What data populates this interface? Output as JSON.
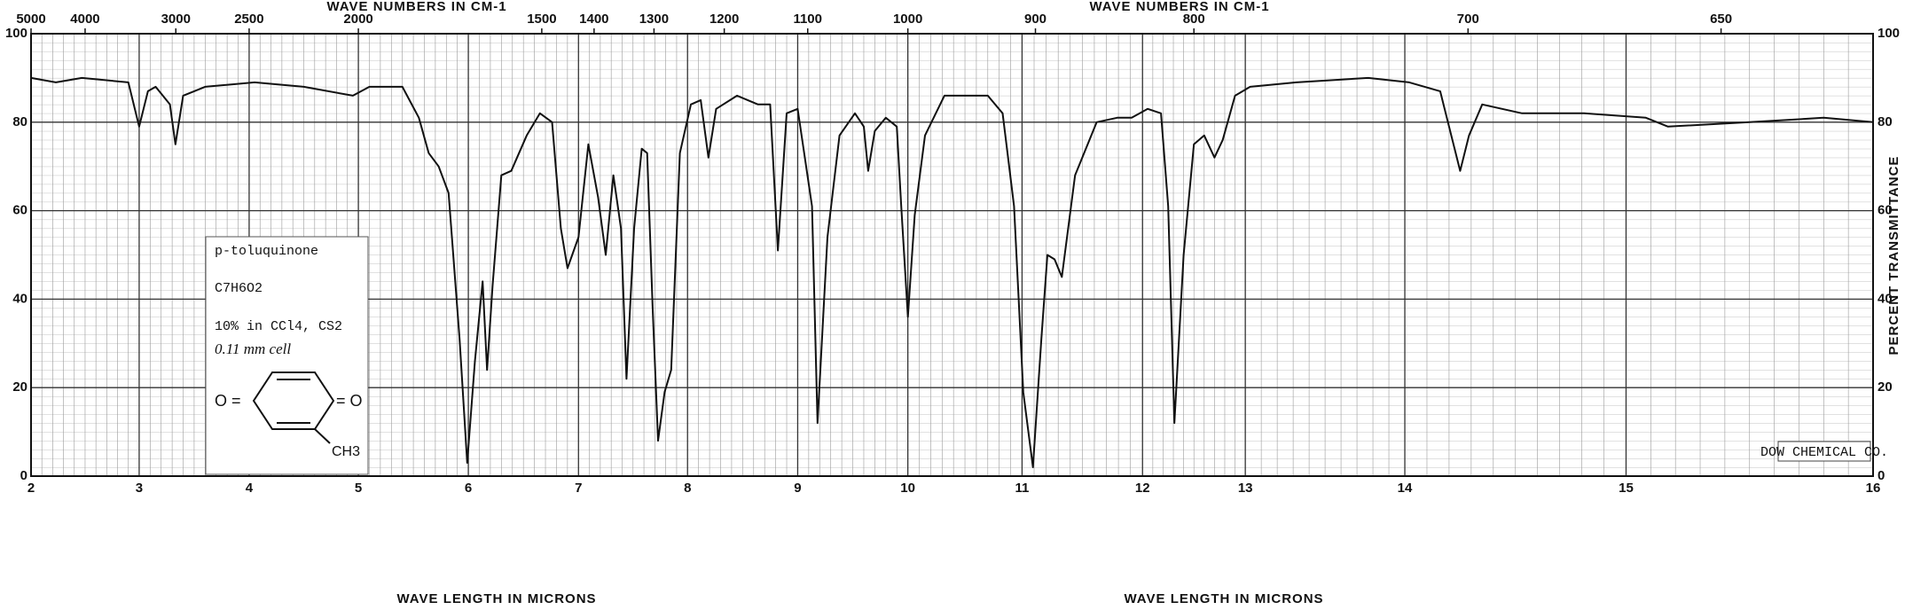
{
  "chart_data": {
    "type": "line",
    "xlabel": "WAVE LENGTH IN MICRONS",
    "x2label": "WAVE NUMBERS IN CM-1",
    "ylabel": "PERCENT TRANSMITTANCE",
    "xlim": [
      2,
      16
    ],
    "xticks": [
      2,
      3,
      4,
      5,
      6,
      7,
      8,
      9,
      10,
      11,
      12,
      13,
      14,
      15,
      16
    ],
    "x2ticks": [
      5000,
      4000,
      3000,
      2500,
      2000,
      1500,
      1400,
      1300,
      1200,
      1100,
      1000,
      900,
      800,
      700,
      650
    ],
    "ylim": [
      0,
      100
    ],
    "yticks": [
      0,
      20,
      40,
      60,
      80,
      100
    ],
    "grid": true,
    "series": [
      {
        "color": "#111111",
        "x": [
          2.0,
          2.23,
          2.47,
          2.9,
          3.0,
          3.08,
          3.15,
          3.28,
          3.33,
          3.4,
          3.6,
          4.05,
          4.5,
          4.95,
          5.1,
          5.4,
          5.55,
          5.64,
          5.73,
          5.82,
          5.92,
          5.99,
          6.06,
          6.13,
          6.17,
          6.22,
          6.3,
          6.39,
          6.53,
          6.65,
          6.76,
          6.84,
          6.9,
          7.0,
          7.09,
          7.18,
          7.25,
          7.32,
          7.39,
          7.44,
          7.51,
          7.58,
          7.63,
          7.68,
          7.73,
          7.79,
          7.85,
          7.93,
          8.03,
          8.12,
          8.19,
          8.26,
          8.45,
          8.64,
          8.75,
          8.82,
          8.9,
          9.0,
          9.13,
          9.18,
          9.27,
          9.38,
          9.52,
          9.6,
          9.64,
          9.7,
          9.8,
          9.9,
          9.94,
          10.0,
          10.06,
          10.15,
          10.32,
          10.7,
          10.83,
          10.93,
          11.01,
          11.09,
          11.16,
          11.21,
          11.27,
          11.33,
          11.44,
          11.62,
          11.79,
          11.91,
          12.05,
          12.18,
          12.25,
          12.31,
          12.4,
          12.5,
          12.6,
          12.7,
          12.78,
          12.9,
          13.03,
          13.32,
          13.77,
          14.02,
          14.16,
          14.22,
          14.25,
          14.29,
          14.35,
          14.53,
          14.81,
          15.08,
          15.17,
          15.5,
          15.8,
          16.0
        ],
        "values": [
          90,
          89,
          90,
          89,
          79,
          87,
          88,
          84,
          75,
          86,
          88,
          89,
          88,
          86,
          88,
          88,
          81,
          73,
          70,
          64,
          31,
          3,
          26,
          44,
          24,
          43,
          68,
          69,
          77,
          82,
          80,
          56,
          47,
          54,
          75,
          63,
          50,
          68,
          56,
          22,
          56,
          74,
          73,
          38,
          8,
          19,
          24,
          73,
          84,
          85,
          72,
          83,
          86,
          84,
          84,
          51,
          82,
          83,
          61,
          12,
          54,
          77,
          82,
          79,
          69,
          78,
          81,
          79,
          61,
          36,
          59,
          77,
          86,
          86,
          82,
          61,
          19,
          2,
          31,
          50,
          49,
          45,
          68,
          80,
          81,
          81,
          83,
          82,
          61,
          12,
          50,
          75,
          77,
          72,
          76,
          86,
          88,
          89,
          90,
          89,
          87,
          75,
          69,
          77,
          84,
          82,
          82,
          81,
          79,
          80,
          81,
          80
        ]
      }
    ]
  },
  "sample": {
    "name": "p-toluquinone",
    "formula": "C7H6O2",
    "solution": "10% in CCl4, CS2",
    "cell": "0.11 mm cell",
    "structure": {
      "left": "O =",
      "right": "= O",
      "substituent": "CH3"
    }
  },
  "source": "DOW CHEMICAL CO."
}
